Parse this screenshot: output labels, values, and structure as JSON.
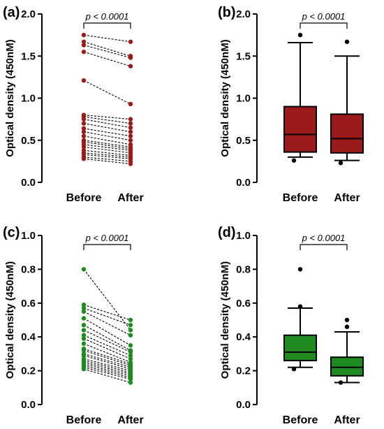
{
  "chart_data": [
    {
      "panel": "(a)",
      "type": "paired-scatter",
      "ylabel": "Optical density (450nM)",
      "ylim": [
        0,
        2.0
      ],
      "yticks": [
        "0.0",
        "0.5",
        "1.0",
        "1.5",
        "2.0"
      ],
      "categories": [
        "Before",
        "After"
      ],
      "annotation": "p < 0.0001",
      "color": "#9b1b1b",
      "pairs": [
        [
          1.75,
          1.67
        ],
        [
          1.67,
          1.5
        ],
        [
          1.63,
          1.48
        ],
        [
          1.55,
          1.38
        ],
        [
          1.21,
          0.93
        ],
        [
          0.8,
          0.75
        ],
        [
          0.78,
          0.7
        ],
        [
          0.75,
          0.65
        ],
        [
          0.7,
          0.6
        ],
        [
          0.64,
          0.55
        ],
        [
          0.6,
          0.5
        ],
        [
          0.55,
          0.45
        ],
        [
          0.5,
          0.42
        ],
        [
          0.48,
          0.4
        ],
        [
          0.45,
          0.38
        ],
        [
          0.42,
          0.35
        ],
        [
          0.38,
          0.32
        ],
        [
          0.35,
          0.3
        ],
        [
          0.33,
          0.28
        ],
        [
          0.3,
          0.25
        ],
        [
          0.28,
          0.22
        ]
      ]
    },
    {
      "panel": "(b)",
      "type": "box",
      "ylabel": "Optical density (450nM)",
      "ylim": [
        0,
        2.0
      ],
      "yticks": [
        "0.0",
        "0.5",
        "1.0",
        "1.5",
        "2.0"
      ],
      "categories": [
        "Before",
        "After"
      ],
      "annotation": "p < 0.0001",
      "color": "#9b1b1b",
      "boxes": [
        {
          "whisker_low": 0.3,
          "q1": 0.36,
          "median": 0.57,
          "q3": 0.9,
          "whisker_high": 1.66,
          "outliers": [
            1.75,
            0.26
          ]
        },
        {
          "whisker_low": 0.26,
          "q1": 0.35,
          "median": 0.52,
          "q3": 0.81,
          "whisker_high": 1.5,
          "outliers": [
            1.67,
            0.23
          ]
        }
      ]
    },
    {
      "panel": "(c)",
      "type": "paired-scatter",
      "ylabel": "Optical density (450nM)",
      "ylim": [
        0,
        1.0
      ],
      "yticks": [
        "0.0",
        "0.2",
        "0.4",
        "0.6",
        "0.8",
        "1.0"
      ],
      "categories": [
        "Before",
        "After"
      ],
      "annotation": "p < 0.0001",
      "color": "#1f8a1f",
      "pairs": [
        [
          0.8,
          0.44
        ],
        [
          0.59,
          0.5
        ],
        [
          0.57,
          0.47
        ],
        [
          0.55,
          0.41
        ],
        [
          0.51,
          0.35
        ],
        [
          0.47,
          0.32
        ],
        [
          0.44,
          0.31
        ],
        [
          0.41,
          0.29
        ],
        [
          0.39,
          0.27
        ],
        [
          0.36,
          0.25
        ],
        [
          0.33,
          0.24
        ],
        [
          0.32,
          0.23
        ],
        [
          0.3,
          0.22
        ],
        [
          0.29,
          0.21
        ],
        [
          0.27,
          0.2
        ],
        [
          0.26,
          0.19
        ],
        [
          0.25,
          0.18
        ],
        [
          0.24,
          0.17
        ],
        [
          0.23,
          0.16
        ],
        [
          0.22,
          0.15
        ],
        [
          0.21,
          0.13
        ]
      ]
    },
    {
      "panel": "(d)",
      "type": "box",
      "ylabel": "Optical density (450nM)",
      "ylim": [
        0,
        1.0
      ],
      "yticks": [
        "0.0",
        "0.2",
        "0.4",
        "0.6",
        "0.8",
        "1.0"
      ],
      "categories": [
        "Before",
        "After"
      ],
      "annotation": "p < 0.0001",
      "color": "#1f8a1f",
      "boxes": [
        {
          "whisker_low": 0.22,
          "q1": 0.26,
          "median": 0.31,
          "q3": 0.41,
          "whisker_high": 0.57,
          "outliers": [
            0.8,
            0.58,
            0.21
          ]
        },
        {
          "whisker_low": 0.13,
          "q1": 0.17,
          "median": 0.22,
          "q3": 0.28,
          "whisker_high": 0.43,
          "outliers": [
            0.5,
            0.46,
            0.13
          ]
        }
      ]
    }
  ]
}
